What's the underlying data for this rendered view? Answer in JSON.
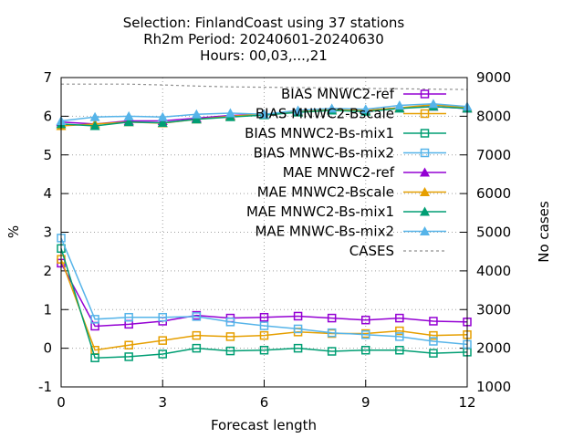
{
  "chart_data": {
    "type": "line",
    "title_lines": [
      "Selection: FinlandCoast using    37 stations",
      "Rh2m   Period: 20240601-20240630",
      "Hours: 00,03,...,21"
    ],
    "xlabel": "Forecast length",
    "ylabel": "%",
    "y2label": "No cases",
    "xlim": [
      0,
      12
    ],
    "ylim": [
      -1,
      7
    ],
    "y2lim": [
      1000,
      9000
    ],
    "xticks": [
      0,
      3,
      6,
      9,
      12
    ],
    "yticks": [
      -1,
      0,
      1,
      2,
      3,
      4,
      5,
      6,
      7
    ],
    "y2ticks": [
      1000,
      2000,
      3000,
      4000,
      5000,
      6000,
      7000,
      8000,
      9000
    ],
    "grid": true,
    "legend_position": "top-right",
    "x": [
      0,
      1,
      2,
      3,
      4,
      5,
      6,
      7,
      8,
      9,
      10,
      11,
      12
    ],
    "series": [
      {
        "name": "BIAS MNWC2-ref",
        "color": "#9400d3",
        "marker": "open-square",
        "axis": "y1",
        "values": [
          2.2,
          0.57,
          0.62,
          0.7,
          0.85,
          0.78,
          0.8,
          0.83,
          0.78,
          0.73,
          0.78,
          0.7,
          0.68
        ]
      },
      {
        "name": "BIAS MNWC2-Bscale",
        "color": "#e69f00",
        "marker": "open-square",
        "axis": "y1",
        "values": [
          2.3,
          -0.05,
          0.08,
          0.2,
          0.33,
          0.3,
          0.33,
          0.42,
          0.38,
          0.38,
          0.45,
          0.33,
          0.35
        ]
      },
      {
        "name": "BIAS MNWC2-Bs-mix1",
        "color": "#009e73",
        "marker": "open-square",
        "axis": "y1",
        "values": [
          2.58,
          -0.25,
          -0.22,
          -0.15,
          0.0,
          -0.07,
          -0.05,
          0.0,
          -0.08,
          -0.05,
          -0.05,
          -0.13,
          -0.1
        ]
      },
      {
        "name": "BIAS MNWC-Bs-mix2",
        "color": "#56b4e9",
        "marker": "open-square",
        "axis": "y1",
        "values": [
          2.85,
          0.75,
          0.8,
          0.8,
          0.82,
          0.68,
          0.58,
          0.5,
          0.4,
          0.35,
          0.3,
          0.18,
          0.1
        ]
      },
      {
        "name": "MAE MNWC2-ref",
        "color": "#9400d3",
        "marker": "filled-triangle",
        "axis": "y1",
        "values": [
          5.85,
          5.8,
          5.88,
          5.88,
          5.95,
          6.02,
          6.05,
          6.12,
          6.18,
          6.15,
          6.22,
          6.25,
          6.2
        ]
      },
      {
        "name": "MAE MNWC2-Bscale",
        "color": "#e69f00",
        "marker": "filled-triangle",
        "axis": "y1",
        "values": [
          5.75,
          5.8,
          5.85,
          5.82,
          5.92,
          6.0,
          6.05,
          6.12,
          6.18,
          6.15,
          6.22,
          6.3,
          6.22
        ]
      },
      {
        "name": "MAE MNWC2-Bs-mix1",
        "color": "#009e73",
        "marker": "filled-triangle",
        "axis": "y1",
        "values": [
          5.8,
          5.75,
          5.85,
          5.83,
          5.92,
          5.98,
          6.03,
          6.1,
          6.15,
          6.12,
          6.2,
          6.25,
          6.2
        ]
      },
      {
        "name": "MAE MNWC-Bs-mix2",
        "color": "#56b4e9",
        "marker": "filled-triangle",
        "axis": "y1",
        "values": [
          5.88,
          5.98,
          6.0,
          5.98,
          6.05,
          6.08,
          6.05,
          6.15,
          6.2,
          6.18,
          6.28,
          6.32,
          6.25
        ]
      },
      {
        "name": "CASES",
        "color": "#909090",
        "marker": "dashed-line",
        "axis": "y2",
        "values": [
          8830,
          8830,
          8830,
          8810,
          8780,
          8760,
          8750,
          8740,
          8730,
          8720,
          8710,
          8700,
          8690
        ]
      }
    ]
  }
}
